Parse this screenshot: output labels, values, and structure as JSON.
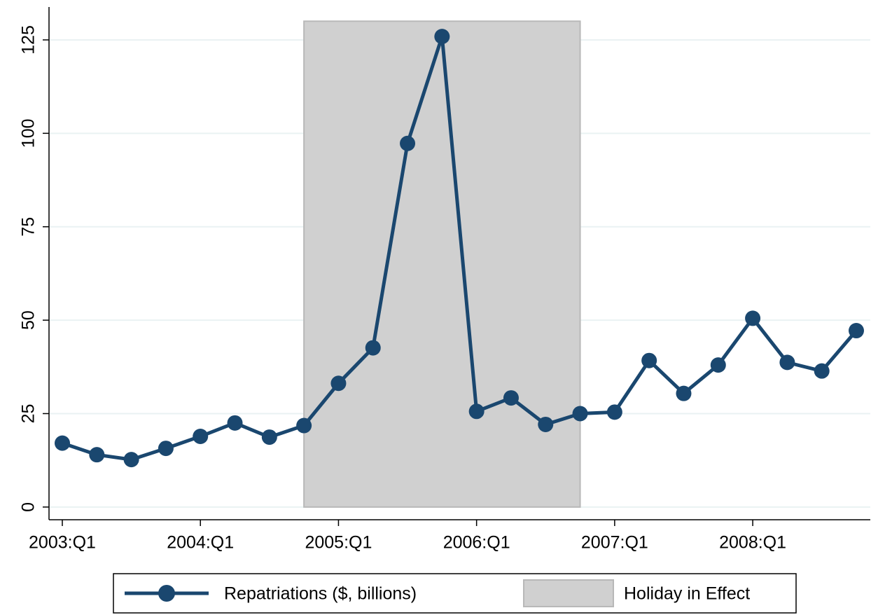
{
  "chart_data": {
    "type": "line",
    "categories": [
      "2003:Q1",
      null,
      null,
      null,
      "2004:Q1",
      null,
      null,
      null,
      "2005:Q1",
      null,
      null,
      null,
      "2006:Q1",
      null,
      null,
      null,
      "2007:Q1",
      null,
      null,
      null,
      "2008:Q1",
      null,
      null,
      null
    ],
    "series": [
      {
        "name": "Repatriations ($, billions)",
        "color": "#1a476f",
        "values": [
          17.1,
          14.0,
          12.7,
          15.7,
          18.9,
          22.5,
          18.7,
          21.8,
          33.1,
          42.6,
          97.3,
          125.9,
          25.6,
          29.2,
          22.1,
          25.0,
          25.4,
          39.2,
          30.4,
          38.0,
          50.5,
          38.7,
          36.4,
          47.2
        ]
      }
    ],
    "shade": {
      "name": "Holiday in Effect",
      "color": "#d0d0d0",
      "start": 7,
      "end": 15,
      "value": 130
    },
    "ylim": [
      -3.4,
      133.8
    ],
    "yticks": [
      0,
      25,
      50,
      75,
      100,
      125
    ],
    "grid": true
  }
}
